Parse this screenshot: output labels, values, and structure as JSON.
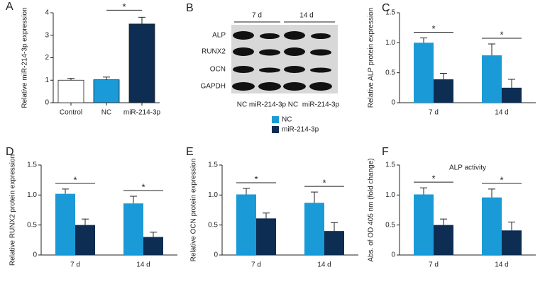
{
  "chart_data": [
    {
      "type": "bar",
      "label": "A",
      "ylabel": "Relative miR-214-3p expression",
      "categories": [
        "Control",
        "NC",
        "miR-214-3p"
      ],
      "values": [
        1.0,
        1.02,
        3.5
      ],
      "errors": [
        0.08,
        0.12,
        0.3
      ],
      "colors": [
        "#ffffff",
        "#1a9ad6",
        "#0d2d52"
      ],
      "ylim": [
        0,
        4
      ],
      "yticks": [
        0,
        1,
        2,
        3,
        4
      ],
      "annotations": [
        "*"
      ]
    },
    {
      "type": "grouped_bar",
      "label": "C",
      "ylabel": "Relative ALP protein expression",
      "categories": [
        "7 d",
        "14 d"
      ],
      "series": [
        {
          "color": "#1a9ad6",
          "values": [
            1.0,
            0.79
          ],
          "errors": [
            0.08,
            0.19
          ]
        },
        {
          "color": "#0d2d52",
          "values": [
            0.39,
            0.25
          ],
          "errors": [
            0.1,
            0.14
          ]
        }
      ],
      "ylim": [
        0,
        1.5
      ],
      "yticks": [
        0,
        0.5,
        {
          "value": 1,
          "label": "1.0"
        },
        1.5
      ],
      "annotations": [
        "*",
        "*"
      ]
    },
    {
      "type": "grouped_bar",
      "label": "D",
      "ylabel": "Relative RUNX2 protein expression",
      "categories": [
        "7 d",
        "14 d"
      ],
      "series": [
        {
          "color": "#1a9ad6",
          "values": [
            1.02,
            0.86
          ],
          "errors": [
            0.08,
            0.12
          ]
        },
        {
          "color": "#0d2d52",
          "values": [
            0.5,
            0.3
          ],
          "errors": [
            0.1,
            0.08
          ]
        }
      ],
      "ylim": [
        0,
        1.5
      ],
      "yticks": [
        0,
        0.5,
        {
          "value": 1,
          "label": "1.0"
        },
        1.5
      ],
      "annotations": [
        "*",
        "*"
      ]
    },
    {
      "type": "grouped_bar",
      "label": "E",
      "ylabel": "Relative OCN protein expression",
      "categories": [
        "7 d",
        "14 d"
      ],
      "series": [
        {
          "color": "#1a9ad6",
          "values": [
            1.01,
            0.87
          ],
          "errors": [
            0.1,
            0.18
          ]
        },
        {
          "color": "#0d2d52",
          "values": [
            0.61,
            0.4
          ],
          "errors": [
            0.09,
            0.14
          ]
        }
      ],
      "ylim": [
        0,
        1.5
      ],
      "yticks": [
        0,
        0.5,
        {
          "value": 1,
          "label": "1.0"
        },
        1.5
      ],
      "annotations": [
        "*",
        "*"
      ]
    },
    {
      "type": "grouped_bar",
      "label": "F",
      "title": "ALP activity",
      "ylabel": "Abs. of OD 405 nm (fold change)",
      "categories": [
        "7 d",
        "14 d"
      ],
      "series": [
        {
          "color": "#1a9ad6",
          "values": [
            1.01,
            0.96
          ],
          "errors": [
            0.11,
            0.14
          ]
        },
        {
          "color": "#0d2d52",
          "values": [
            0.5,
            0.41
          ],
          "errors": [
            0.1,
            0.14
          ]
        }
      ],
      "ylim": [
        0,
        1.5
      ],
      "yticks": [
        0,
        0.5,
        {
          "value": 1,
          "label": "1.0"
        },
        1.5
      ],
      "annotations": [
        "*",
        "*"
      ]
    }
  ],
  "legend": {
    "items": [
      {
        "name": "NC",
        "color": "#1a9ad6"
      },
      {
        "name": "miR-214-3p",
        "color": "#0d2d52"
      }
    ]
  },
  "blot": {
    "label": "B",
    "groups": [
      "7 d",
      "14 d"
    ],
    "rows": [
      "ALP",
      "RUNX2",
      "OCN",
      "GAPDH"
    ],
    "lanes": [
      "NC",
      "miR-214-3p",
      "NC",
      "miR-214-3p"
    ]
  }
}
